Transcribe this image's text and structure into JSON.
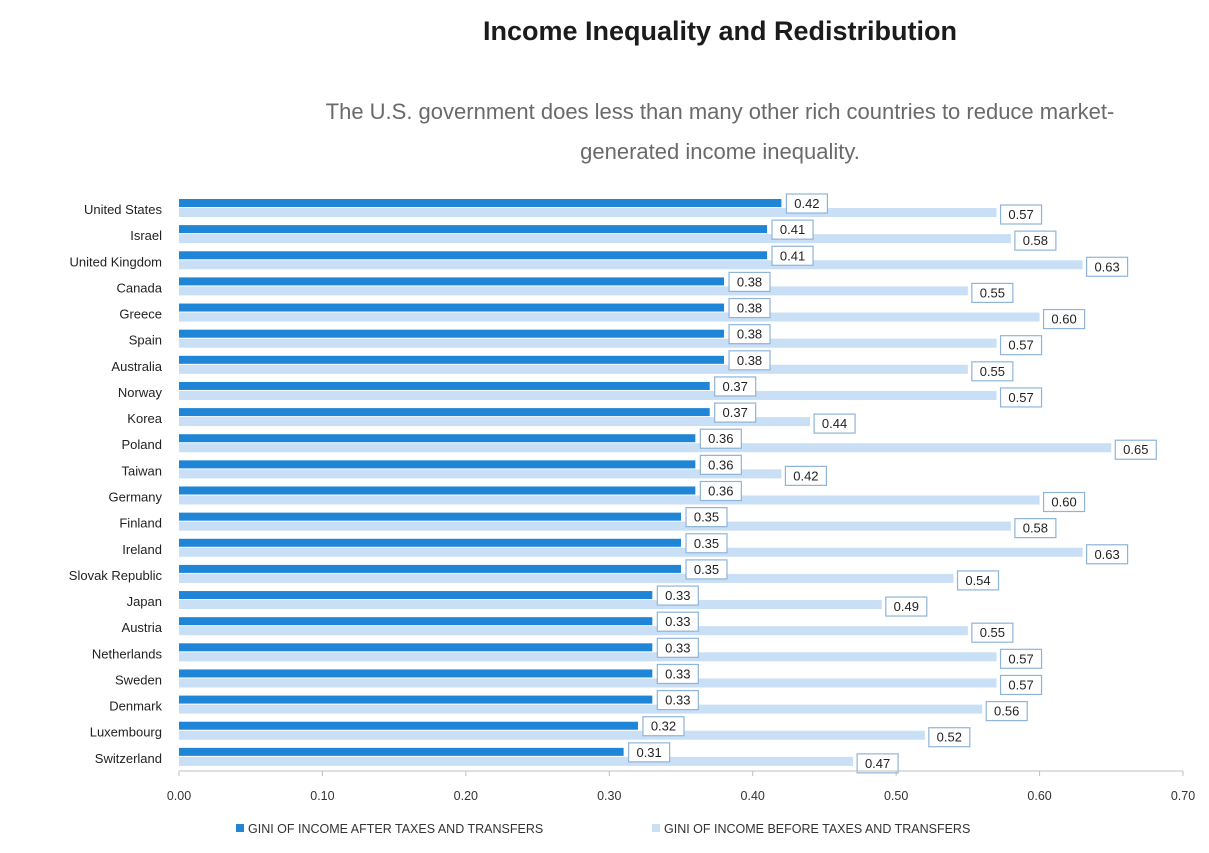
{
  "chart_data": {
    "type": "bar",
    "orientation": "horizontal",
    "title": "Income Inequality and Redistribution",
    "subtitle_lines": [
      "The U.S. government does less than many other rich countries to reduce market-",
      "generated income inequality."
    ],
    "categories": [
      "United States",
      "Israel",
      "United Kingdom",
      "Canada",
      "Greece",
      "Spain",
      "Australia",
      "Norway",
      "Korea",
      "Poland",
      "Taiwan",
      "Germany",
      "Finland",
      "Ireland",
      "Slovak Republic",
      "Japan",
      "Austria",
      "Netherlands",
      "Sweden",
      "Denmark",
      "Luxembourg",
      "Switzerland"
    ],
    "series": [
      {
        "name": "GINI OF INCOME AFTER TAXES AND TRANSFERS",
        "color": "#1f85d6",
        "values": [
          0.42,
          0.41,
          0.41,
          0.38,
          0.38,
          0.38,
          0.38,
          0.37,
          0.37,
          0.36,
          0.36,
          0.36,
          0.35,
          0.35,
          0.35,
          0.33,
          0.33,
          0.33,
          0.33,
          0.33,
          0.32,
          0.31
        ],
        "labels": [
          "0.42",
          "0.41",
          "0.41",
          "0.38",
          "0.38",
          "0.38",
          "0.38",
          "0.37",
          "0.37",
          "0.36",
          "0.36",
          "0.36",
          "0.35",
          "0.35",
          "0.35",
          "0.33",
          "0.33",
          "0.33",
          "0.33",
          "0.33",
          "0.32",
          "0.31"
        ]
      },
      {
        "name": "GINI OF INCOME BEFORE TAXES AND TRANSFERS",
        "color": "#c9dff5",
        "values": [
          0.57,
          0.58,
          0.63,
          0.55,
          0.6,
          0.57,
          0.55,
          0.57,
          0.44,
          0.65,
          0.42,
          0.6,
          0.58,
          0.63,
          0.54,
          0.49,
          0.55,
          0.57,
          0.57,
          0.56,
          0.52,
          0.47
        ],
        "labels": [
          "0.57",
          "0.58",
          "0.63",
          "0.55",
          "0.60",
          "0.57",
          "0.55",
          "0.57",
          "0.44",
          "0.65",
          "0.42",
          "0.60",
          "0.58",
          "0.63",
          "0.54",
          "0.49",
          "0.55",
          "0.57",
          "0.57",
          "0.56",
          "0.52",
          "0.47"
        ]
      }
    ],
    "xlim": [
      0,
      0.7
    ],
    "xticks": [
      "0.00",
      "0.10",
      "0.20",
      "0.30",
      "0.40",
      "0.50",
      "0.60",
      "0.70"
    ],
    "grid": false,
    "legend_position": "bottom"
  }
}
